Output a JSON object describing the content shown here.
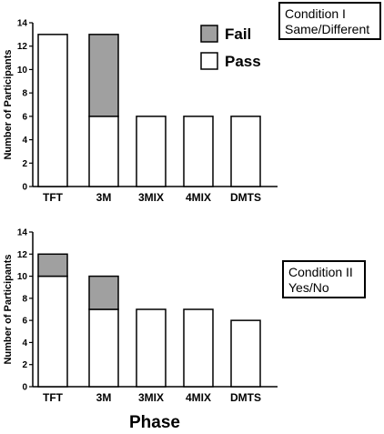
{
  "chart_data": [
    {
      "type": "bar",
      "stacked": true,
      "categories": [
        "TFT",
        "3M",
        "3MIX",
        "4MIX",
        "DMTS"
      ],
      "series": [
        {
          "name": "Pass",
          "values": [
            13,
            6,
            6,
            6,
            6
          ],
          "color": "#ffffff"
        },
        {
          "name": "Fail",
          "values": [
            0,
            7,
            0,
            0,
            0
          ],
          "color": "#a0a0a0"
        }
      ],
      "ylabel": "Number of Participants",
      "ylim": [
        0,
        14
      ],
      "yticks": [
        0,
        2,
        4,
        6,
        8,
        10,
        12,
        14
      ],
      "legend": "top-right",
      "grid": false,
      "annotation": {
        "line1": "Condition  I",
        "line2": "Same/Different"
      }
    },
    {
      "type": "bar",
      "stacked": true,
      "categories": [
        "TFT",
        "3M",
        "3MIX",
        "4MIX",
        "DMTS"
      ],
      "series": [
        {
          "name": "Pass",
          "values": [
            10,
            7,
            7,
            7,
            6
          ],
          "color": "#ffffff"
        },
        {
          "name": "Fail",
          "values": [
            2,
            3,
            0,
            0,
            0
          ],
          "color": "#a0a0a0"
        }
      ],
      "ylabel": "Number of Participants",
      "ylim": [
        0,
        14
      ],
      "yticks": [
        0,
        2,
        4,
        6,
        8,
        10,
        12,
        14
      ],
      "grid": false,
      "annotation": {
        "line1": "Condition  II",
        "line2": "Yes/No"
      }
    }
  ],
  "xlabel": "Phase"
}
